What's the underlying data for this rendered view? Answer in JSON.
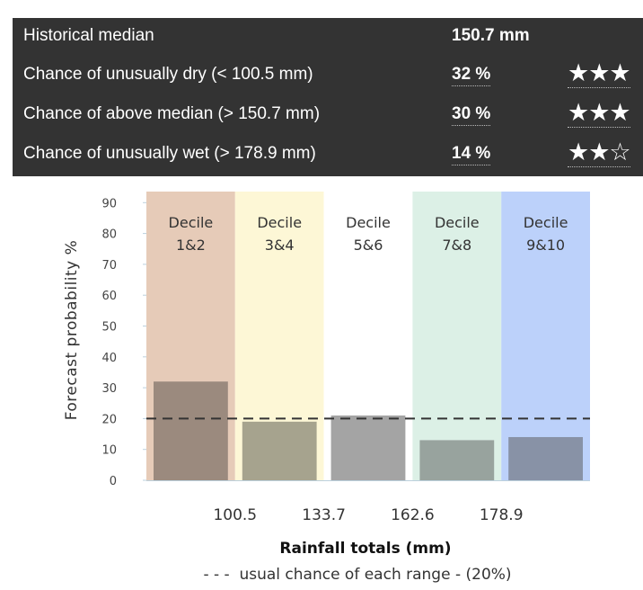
{
  "summary": {
    "rows": [
      {
        "label": "Historical median",
        "value": "150.7 mm",
        "stars": ""
      },
      {
        "label": "Chance of unusually dry (< 100.5 mm)",
        "value": "32 %",
        "stars": "★★★"
      },
      {
        "label": "Chance of above median (> 150.7 mm)",
        "value": "30 %",
        "stars": "★★★"
      },
      {
        "label": "Chance of unusually wet (> 178.9 mm)",
        "value": "14 %",
        "stars": "★★☆"
      }
    ],
    "confidence_stars": [
      null,
      3,
      3,
      2
    ]
  },
  "chart_data": {
    "type": "bar",
    "categories": [
      "Decile 1&2",
      "Decile 3&4",
      "Decile 5&6",
      "Decile 7&8",
      "Decile 9&10"
    ],
    "decile_labels": [
      {
        "line1": "Decile",
        "line2": "1&2"
      },
      {
        "line1": "Decile",
        "line2": "3&4"
      },
      {
        "line1": "Decile",
        "line2": "5&6"
      },
      {
        "line1": "Decile",
        "line2": "7&8"
      },
      {
        "line1": "Decile",
        "line2": "9&10"
      }
    ],
    "values": [
      32,
      19,
      21,
      13,
      14
    ],
    "ylabel": "Forecast probability %",
    "xlabel": "Rainfall totals (mm)",
    "ylim": [
      0,
      90
    ],
    "yticks": [
      "0",
      "10",
      "20",
      "30",
      "40",
      "50",
      "60",
      "70",
      "80",
      "90"
    ],
    "x_boundaries": [
      "100.5",
      "133.7",
      "162.6",
      "178.9"
    ],
    "reference_line": {
      "value": 20,
      "legend": "- - -  usual chance of each range - (20%)"
    },
    "band_colors": [
      "#e6cbb8",
      "#fdf7d6",
      "#ffffff",
      "#dcf0e6",
      "#bcd1fa"
    ],
    "bar_colors": [
      "#9b8a7e",
      "#a6a38e",
      "#a4a4a4",
      "#98a39e",
      "#8892a6"
    ]
  }
}
